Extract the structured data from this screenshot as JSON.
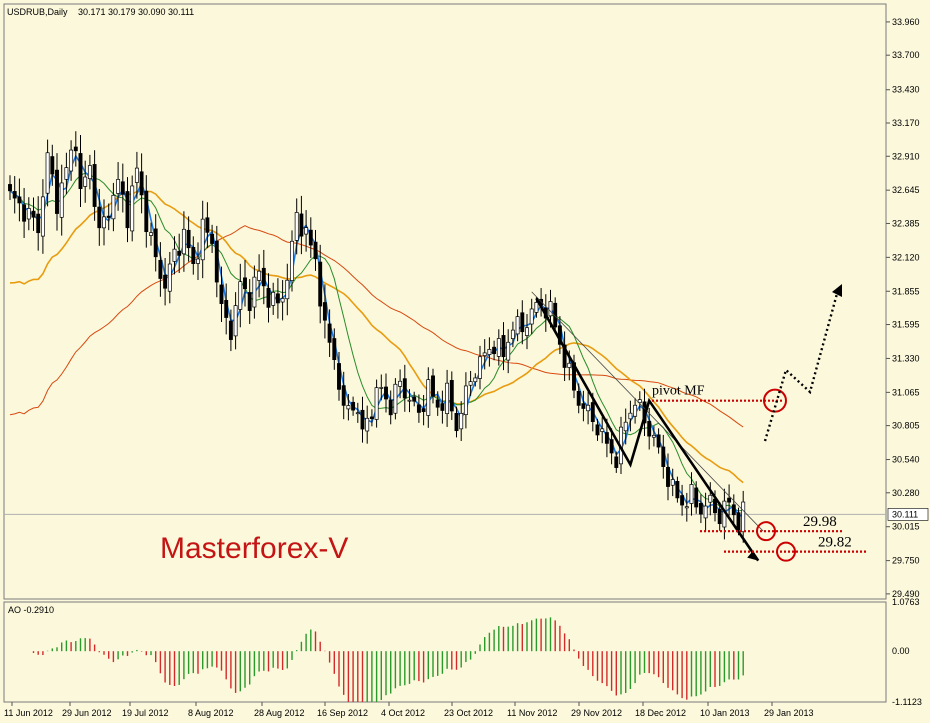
{
  "chart_data": {
    "type": "candlestick",
    "title": "USDRUB,Daily",
    "ohlc_readout": [
      "30.171",
      "30.179",
      "30.090",
      "30.111"
    ],
    "current_price_label": "30.111",
    "brand": "Masterforex-V",
    "pivot_label": "pivot MF",
    "y_ticks": [
      "33.960",
      "33.700",
      "33.430",
      "33.170",
      "32.910",
      "32.645",
      "32.385",
      "32.120",
      "31.855",
      "31.595",
      "31.330",
      "31.065",
      "30.805",
      "30.540",
      "30.280",
      "30.015",
      "29.750",
      "29.490"
    ],
    "ylim": [
      29.45,
      34.1
    ],
    "x_ticks": [
      "11 Jun 2012",
      "29 Jun 2012",
      "19 Jul 2012",
      "8 Aug 2012",
      "28 Aug 2012",
      "16 Sep 2012",
      "4 Oct 2012",
      "23 Oct 2012",
      "11 Nov 2012",
      "29 Nov 2012",
      "18 Dec 2012",
      "10 Jan 2013",
      "29 Jan 2013"
    ],
    "close_anchors": [
      [
        0,
        32.6
      ],
      [
        4,
        32.45
      ],
      [
        6,
        32.35
      ],
      [
        8,
        32.9
      ],
      [
        10,
        32.55
      ],
      [
        12,
        32.8
      ],
      [
        14,
        33.05
      ],
      [
        15,
        32.6
      ],
      [
        17,
        32.85
      ],
      [
        19,
        32.3
      ],
      [
        21,
        32.5
      ],
      [
        23,
        32.7
      ],
      [
        25,
        32.45
      ],
      [
        27,
        32.8
      ],
      [
        29,
        32.4
      ],
      [
        31,
        32.1
      ],
      [
        33,
        31.9
      ],
      [
        35,
        32.15
      ],
      [
        37,
        32.3
      ],
      [
        39,
        32.05
      ],
      [
        41,
        32.35
      ],
      [
        43,
        32.25
      ],
      [
        45,
        31.7
      ],
      [
        47,
        31.55
      ],
      [
        49,
        31.9
      ],
      [
        51,
        31.8
      ],
      [
        53,
        32.0
      ],
      [
        55,
        31.8
      ],
      [
        57,
        31.75
      ],
      [
        59,
        31.95
      ],
      [
        61,
        32.45
      ],
      [
        63,
        32.3
      ],
      [
        65,
        32.1
      ],
      [
        67,
        31.55
      ],
      [
        69,
        31.35
      ],
      [
        71,
        30.9
      ],
      [
        73,
        31.0
      ],
      [
        75,
        30.75
      ],
      [
        77,
        30.95
      ],
      [
        79,
        31.1
      ],
      [
        81,
        30.95
      ],
      [
        83,
        31.15
      ],
      [
        85,
        31.0
      ],
      [
        87,
        30.9
      ],
      [
        89,
        31.1
      ],
      [
        91,
        30.95
      ],
      [
        93,
        31.05
      ],
      [
        95,
        30.8
      ],
      [
        97,
        31.05
      ],
      [
        99,
        31.25
      ],
      [
        101,
        31.35
      ],
      [
        103,
        31.45
      ],
      [
        105,
        31.35
      ],
      [
        107,
        31.6
      ],
      [
        109,
        31.55
      ],
      [
        111,
        31.7
      ],
      [
        113,
        31.75
      ],
      [
        115,
        31.7
      ],
      [
        117,
        31.45
      ],
      [
        119,
        31.2
      ],
      [
        121,
        31.0
      ],
      [
        123,
        30.9
      ],
      [
        125,
        30.8
      ],
      [
        127,
        30.65
      ],
      [
        129,
        30.55
      ],
      [
        131,
        30.85
      ],
      [
        133,
        31.0
      ],
      [
        135,
        30.85
      ],
      [
        137,
        30.7
      ],
      [
        139,
        30.5
      ],
      [
        141,
        30.3
      ],
      [
        143,
        30.2
      ],
      [
        145,
        30.25
      ],
      [
        147,
        30.15
      ],
      [
        149,
        30.2
      ],
      [
        151,
        30.1
      ],
      [
        153,
        30.2
      ],
      [
        155,
        30.05
      ],
      [
        156,
        30.11
      ]
    ],
    "last_bar_index": 156,
    "bar_step": 4.7,
    "ao": {
      "label": "AO -0.2910",
      "ticks": [
        "1.0763",
        "0.00",
        "-1.1123"
      ],
      "range": [
        -1.1123,
        1.0763
      ]
    },
    "levels": [
      {
        "label": "29.98",
        "value": 29.98
      },
      {
        "label": "29.82",
        "value": 29.82
      }
    ],
    "pivot_value": 31.0,
    "colors": {
      "bull": "#ffffff",
      "bear": "#000000",
      "ma_fast": "#1e7ae0",
      "ma_mid": "#2a8c2a",
      "ma_slow": "#e89c10",
      "ma_long": "#d84a10",
      "ao_up": "#2a9a2a",
      "ao_down": "#d42a2a",
      "levels": "#cc0000",
      "price_line": "#b0b0b0"
    }
  }
}
